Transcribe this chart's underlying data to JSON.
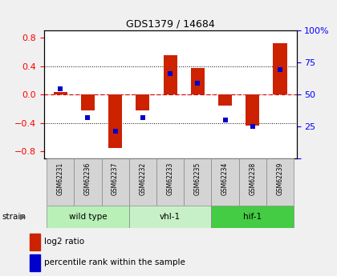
{
  "title": "GDS1379 / 14684",
  "samples": [
    "GSM62231",
    "GSM62236",
    "GSM62237",
    "GSM62232",
    "GSM62233",
    "GSM62235",
    "GSM62234",
    "GSM62238",
    "GSM62239"
  ],
  "log2_ratios": [
    0.04,
    -0.22,
    -0.75,
    -0.22,
    0.55,
    0.37,
    -0.15,
    -0.44,
    0.72
  ],
  "percentile_ranks": [
    55,
    30,
    18,
    30,
    68,
    60,
    28,
    22,
    72
  ],
  "groups": [
    {
      "label": "wild type",
      "start": 0,
      "end": 3,
      "color": "#b8f0b8"
    },
    {
      "label": "vhl-1",
      "start": 3,
      "end": 6,
      "color": "#c8f0c8"
    },
    {
      "label": "hif-1",
      "start": 6,
      "end": 9,
      "color": "#44cc44"
    }
  ],
  "ylim_left": [
    -0.9,
    0.9
  ],
  "ylim_right": [
    0,
    100
  ],
  "yticks_left": [
    -0.8,
    -0.4,
    0.0,
    0.4,
    0.8
  ],
  "yticks_right": [
    0,
    25,
    50,
    75,
    100
  ],
  "bar_color": "#cc2200",
  "dot_color": "#0000cc",
  "zero_line_color": "#cc0000",
  "bg_color": "#f0f0f0",
  "plot_bg": "#ffffff",
  "bar_width": 0.5,
  "dot_size": 18,
  "legend_red_label": "log2 ratio",
  "legend_blue_label": "percentile rank within the sample",
  "sample_box_color": "#d4d4d4",
  "group_border_color": "#888888"
}
